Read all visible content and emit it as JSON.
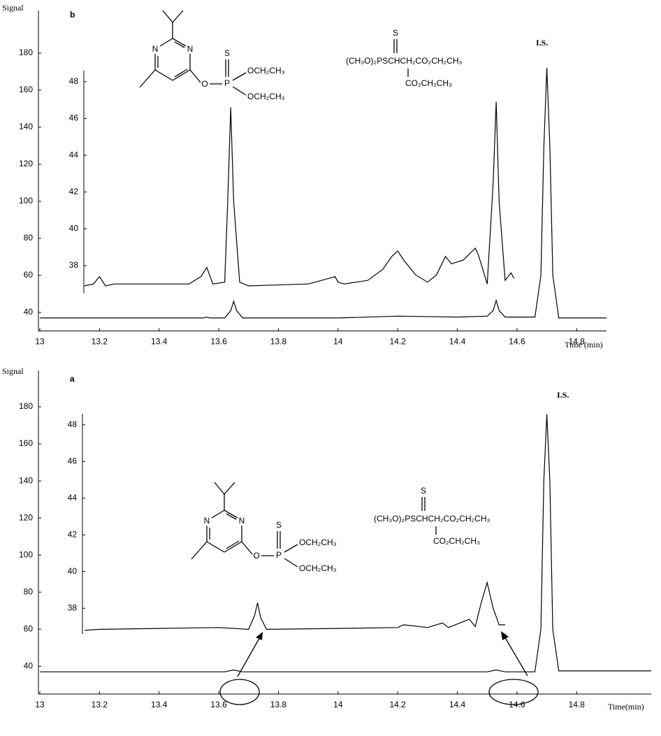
{
  "chart_data": [
    {
      "type": "line",
      "panel_label": "b",
      "y_label": "Signal",
      "x_label": "Time (min)",
      "color": "#000000",
      "xlim": [
        13,
        14.9
      ],
      "xticks": [
        13,
        13.2,
        13.4,
        13.6,
        13.8,
        14,
        14.2,
        14.4,
        14.6,
        14.8
      ],
      "ylim": [
        30,
        200
      ],
      "yticks": [
        40,
        60,
        80,
        100,
        120,
        140,
        160,
        180
      ],
      "x": [
        13.0,
        13.55,
        13.56,
        13.57,
        13.62,
        13.64,
        13.65,
        13.66,
        13.68,
        14.0,
        14.2,
        14.4,
        14.5,
        14.52,
        14.53,
        14.54,
        14.56,
        14.66,
        14.68,
        14.69,
        14.7,
        14.71,
        14.72,
        14.74,
        14.9
      ],
      "values": [
        37,
        37,
        37.5,
        37,
        37,
        41,
        46,
        41,
        37,
        37,
        38,
        37.5,
        38,
        41,
        46.5,
        41,
        37.5,
        37.5,
        60,
        130,
        172,
        130,
        60,
        37,
        37
      ],
      "peak_label": "I.S.",
      "inset": {
        "ylim": [
          36.5,
          48.6
        ],
        "yticks": [
          38,
          40,
          42,
          44,
          46,
          48
        ],
        "x": [
          13.15,
          13.18,
          13.2,
          13.22,
          13.25,
          13.5,
          13.54,
          13.56,
          13.58,
          13.62,
          13.63,
          13.64,
          13.65,
          13.67,
          13.7,
          13.9,
          13.99,
          14.0,
          14.02,
          14.1,
          14.15,
          14.18,
          14.2,
          14.22,
          14.26,
          14.3,
          14.33,
          14.36,
          14.38,
          14.42,
          14.46,
          14.47,
          14.5,
          14.52,
          14.53,
          14.54,
          14.56,
          14.58,
          14.59
        ],
        "values": [
          36.9,
          37.0,
          37.4,
          36.9,
          37.0,
          37.0,
          37.4,
          37.9,
          37.0,
          37.1,
          41.5,
          46.6,
          41.5,
          37.1,
          36.9,
          37.0,
          37.4,
          37.1,
          37.0,
          37.2,
          37.8,
          38.5,
          38.8,
          38.3,
          37.5,
          37.1,
          37.5,
          38.5,
          38.1,
          38.3,
          38.95,
          38.6,
          37.0,
          42.5,
          46.9,
          41.5,
          37.2,
          37.6,
          37.3
        ]
      },
      "diazinon": {
        "n1": "N",
        "n2": "N",
        "o": "O",
        "p": "P",
        "s": "S",
        "oet1": "OCH₂CH₃",
        "oet2": "OCH₂CH₃"
      },
      "malathion": {
        "s": "S",
        "formula": "(CH₃O)₂PSCHCH₂CO₂CH₂CH₃",
        "branch": "CO₂CH₂CH₃"
      }
    },
    {
      "type": "line",
      "panel_label": "a",
      "y_label": "Signal",
      "x_label": "Time(min)",
      "color": "#000000",
      "xlim": [
        13,
        15.05
      ],
      "xticks": [
        13,
        13.2,
        13.4,
        13.6,
        13.8,
        14,
        14.2,
        14.4,
        14.6,
        14.8
      ],
      "ylim": [
        25,
        200
      ],
      "yticks": [
        40,
        60,
        80,
        100,
        120,
        140,
        160,
        180
      ],
      "x": [
        13.0,
        13.62,
        13.65,
        13.68,
        14.5,
        14.53,
        14.56,
        14.66,
        14.68,
        14.69,
        14.7,
        14.71,
        14.72,
        14.74,
        15.05
      ],
      "values": [
        37,
        37,
        38,
        37,
        37,
        38,
        37,
        37,
        60,
        140,
        176,
        140,
        60,
        37.5,
        37.5
      ],
      "peak_label": "I.S.",
      "inset": {
        "ylim": [
          36.6,
          48.6
        ],
        "yticks": [
          38,
          40,
          42,
          44,
          46,
          48
        ],
        "x": [
          13.15,
          13.2,
          13.4,
          13.6,
          13.7,
          13.72,
          13.73,
          13.74,
          13.76,
          14.0,
          14.2,
          14.22,
          14.3,
          14.35,
          14.37,
          14.44,
          14.46,
          14.48,
          14.5,
          14.52,
          14.54,
          14.56
        ],
        "values": [
          36.8,
          36.85,
          36.9,
          36.95,
          36.85,
          37.6,
          38.3,
          37.5,
          36.85,
          36.9,
          36.95,
          37.1,
          36.95,
          37.2,
          36.95,
          37.4,
          37.0,
          38.3,
          39.4,
          38.0,
          37.1,
          37.1
        ]
      },
      "diazinon": {
        "n1": "N",
        "n2": "N",
        "o": "O",
        "p": "P",
        "s": "S",
        "oet1": "OCH₂CH₃",
        "oet2": "OCH₂CH₃"
      },
      "malathion": {
        "s": "S",
        "formula": "(CH₃O)₂PSCHCH₂CO₂CH₂CH₃",
        "branch": "CO₂CH₂CH₃"
      }
    }
  ]
}
